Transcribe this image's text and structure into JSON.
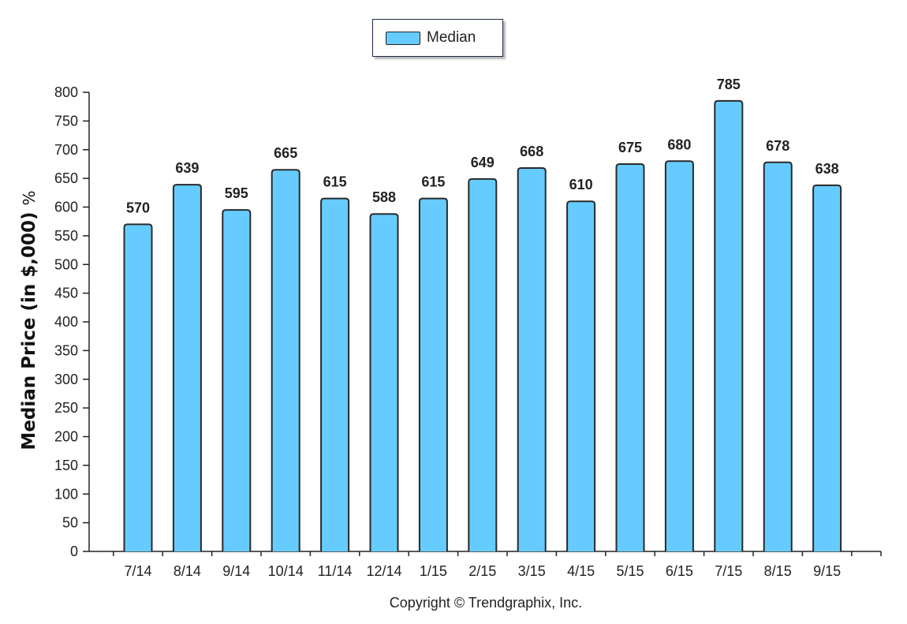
{
  "legend": {
    "label": "Median"
  },
  "ylabel": {
    "text": "Median Price (in $,000)",
    "suffix": "%"
  },
  "copyright": "Copyright © Trendgraphix, Inc.",
  "colors": {
    "bar": "#66ccff",
    "bar_stroke": "#2a2a2a",
    "axis": "#222222"
  },
  "chart_data": {
    "type": "bar",
    "categories": [
      "7/14",
      "8/14",
      "9/14",
      "10/14",
      "11/14",
      "12/14",
      "1/15",
      "2/15",
      "3/15",
      "4/15",
      "5/15",
      "6/15",
      "7/15",
      "8/15",
      "9/15"
    ],
    "series": [
      {
        "name": "Median",
        "values": [
          570,
          639,
          595,
          665,
          615,
          588,
          615,
          649,
          668,
          610,
          675,
          680,
          785,
          678,
          638
        ]
      }
    ],
    "ylabel": "Median Price (in $,000) %",
    "ylim": [
      0,
      800
    ],
    "yticks": [
      0,
      50,
      100,
      150,
      200,
      250,
      300,
      350,
      400,
      450,
      500,
      550,
      600,
      650,
      700,
      750,
      800
    ],
    "grid": false,
    "legend_position": "top-center",
    "data_labels": true
  }
}
